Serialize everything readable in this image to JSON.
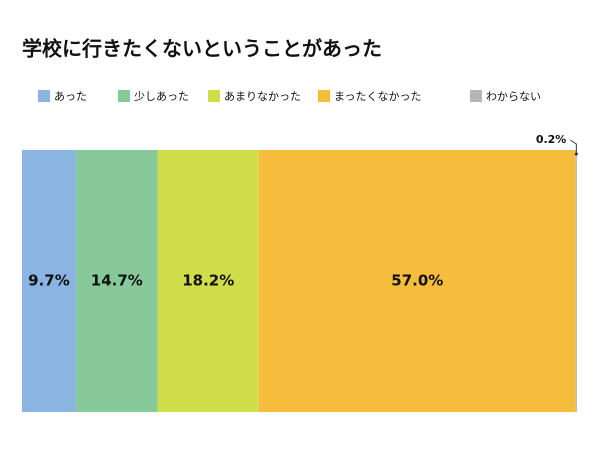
{
  "chart_data": {
    "type": "stacked-bar",
    "orientation": "horizontal",
    "title": "学校に行きたくないということがあった",
    "categories": [
      null
    ],
    "xlim": [
      0,
      100
    ],
    "series": [
      {
        "name": "あった",
        "color": "#8ab4e2",
        "values": [
          9.7
        ],
        "value_labels": [
          "9.7%"
        ]
      },
      {
        "name": "少しあった",
        "color": "#88c999",
        "values": [
          14.7
        ],
        "value_labels": [
          "14.7%"
        ]
      },
      {
        "name": "あまりなかった",
        "color": "#cfdd4a",
        "values": [
          18.2
        ],
        "value_labels": [
          "18.2%"
        ]
      },
      {
        "name": "まったくなかった",
        "color": "#f6bd3c",
        "values": [
          57.0
        ],
        "value_labels": [
          "57.0%"
        ]
      },
      {
        "name": "わからない",
        "color": "#b5b5b5",
        "values": [
          0.2
        ],
        "value_labels": [
          "0.2%"
        ]
      }
    ]
  }
}
